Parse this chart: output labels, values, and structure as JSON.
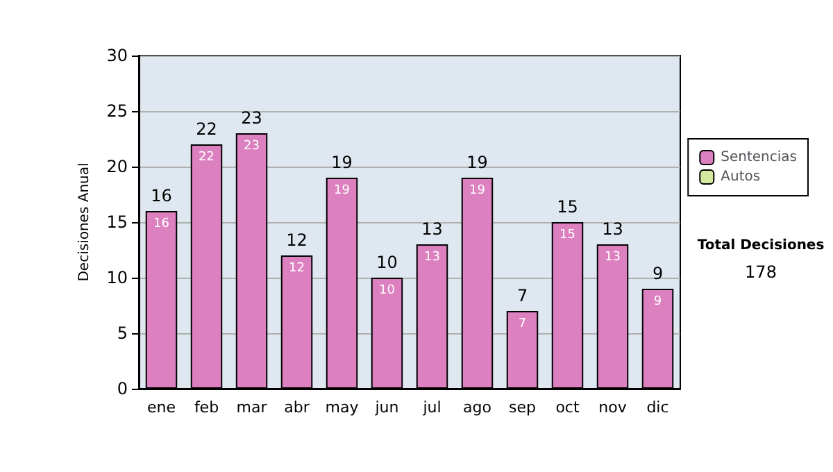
{
  "chart_data": {
    "type": "bar",
    "stacked": true,
    "ylabel": "Decisiones Anual",
    "categories": [
      "ene",
      "feb",
      "mar",
      "abr",
      "may",
      "jun",
      "jul",
      "ago",
      "sep",
      "oct",
      "nov",
      "dic"
    ],
    "series": [
      {
        "name": "Sentencias",
        "color": "#dd80c0",
        "values": [
          16,
          22,
          23,
          12,
          19,
          10,
          13,
          19,
          7,
          15,
          13,
          9
        ],
        "value_labels": [
          "16",
          "22",
          "23",
          "12",
          "19",
          "10",
          "13",
          "19",
          "7",
          "15",
          "13",
          "9"
        ]
      },
      {
        "name": "Autos",
        "color": "#d4e8a0",
        "values": [
          0,
          0,
          0,
          0,
          0,
          0,
          0,
          0,
          0,
          0,
          0,
          0
        ]
      }
    ],
    "totals": [
      "16",
      "22",
      "23",
      "12",
      "19",
      "10",
      "13",
      "19",
      "7",
      "15",
      "13",
      "9"
    ],
    "ylim": [
      0,
      30
    ],
    "yticks": [
      0,
      5,
      10,
      15,
      20,
      25,
      30
    ],
    "grid": "y",
    "legend": "right",
    "annotations": [
      "Total Decisiones",
      "178"
    ]
  }
}
